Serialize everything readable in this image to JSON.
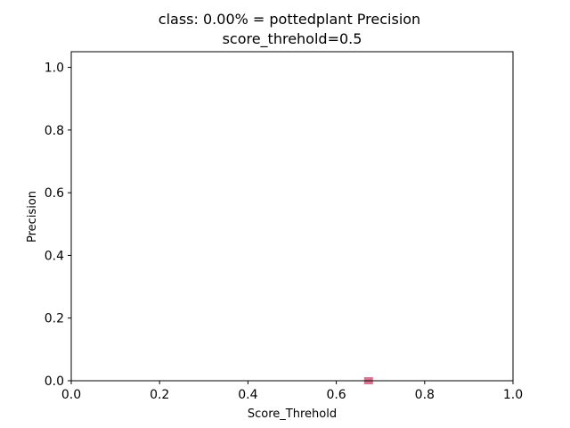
{
  "chart_data": {
    "type": "scatter",
    "title": "class: 0.00% = pottedplant Precision",
    "subtitle": "score_threhold=0.5",
    "xlabel": "Score_Threhold",
    "ylabel": "Precision",
    "xlim": [
      0.0,
      1.0
    ],
    "ylim": [
      0.0,
      1.05
    ],
    "xticks": [
      0.0,
      0.2,
      0.4,
      0.6,
      0.8,
      1.0
    ],
    "xtick_labels": [
      "0.0",
      "0.2",
      "0.4",
      "0.6",
      "0.8",
      "1.0"
    ],
    "yticks": [
      0.0,
      0.2,
      0.4,
      0.6,
      0.8,
      1.0
    ],
    "ytick_labels": [
      "0.0",
      "0.2",
      "0.4",
      "0.6",
      "0.8",
      "1.0"
    ],
    "grid": false,
    "legend": "none",
    "marker_color": "#d9728f",
    "x": [
      0.673
    ],
    "y": [
      0.0
    ]
  }
}
